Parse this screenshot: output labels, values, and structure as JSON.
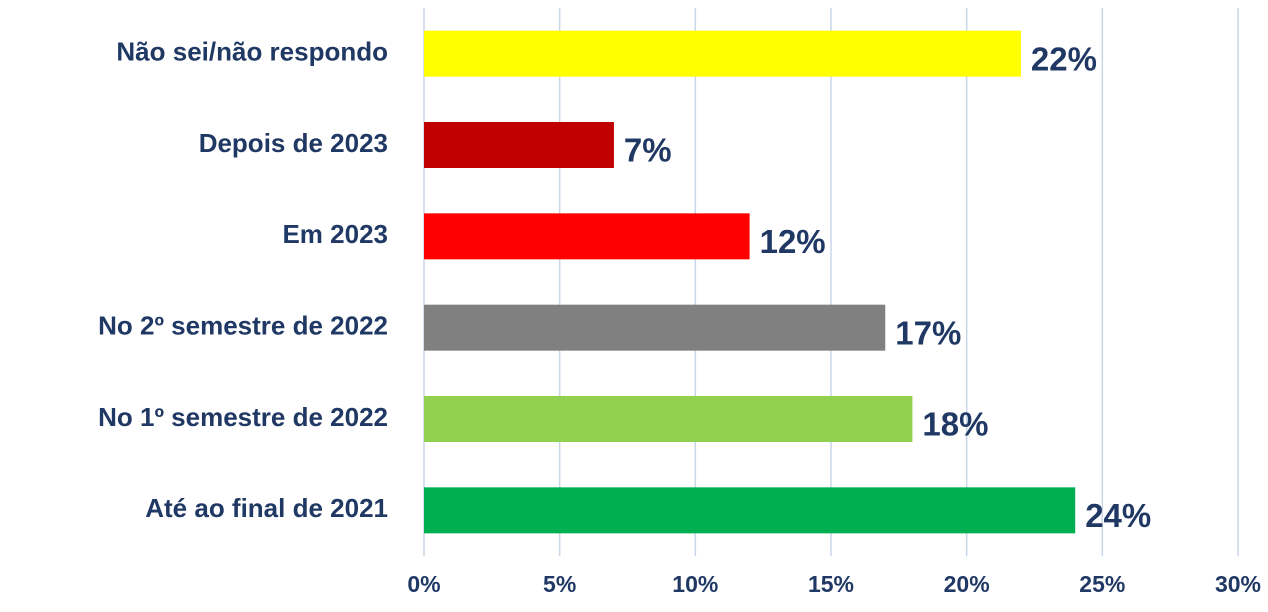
{
  "chart_data": {
    "type": "bar",
    "orientation": "horizontal",
    "categories": [
      "Não sei/não respondo",
      "Depois de 2023",
      "Em 2023",
      "No 2º semestre de 2022",
      "No 1º semestre de 2022",
      "Até ao final de 2021"
    ],
    "values": [
      22,
      7,
      12,
      17,
      18,
      24
    ],
    "value_labels": [
      "22%",
      "7%",
      "12%",
      "17%",
      "18%",
      "24%"
    ],
    "colors": [
      "#ffff00",
      "#c00000",
      "#ff0000",
      "#808080",
      "#92d050",
      "#00b050"
    ],
    "xlim": [
      0,
      30
    ],
    "xticks": [
      {
        "value": 0,
        "label": "0%"
      },
      {
        "value": 5,
        "label": "5%"
      },
      {
        "value": 10,
        "label": "10%"
      },
      {
        "value": 15,
        "label": "15%"
      },
      {
        "value": 20,
        "label": "20%"
      },
      {
        "value": 25,
        "label": "25%"
      },
      {
        "value": 30,
        "label": "30%"
      }
    ],
    "grid": true
  }
}
